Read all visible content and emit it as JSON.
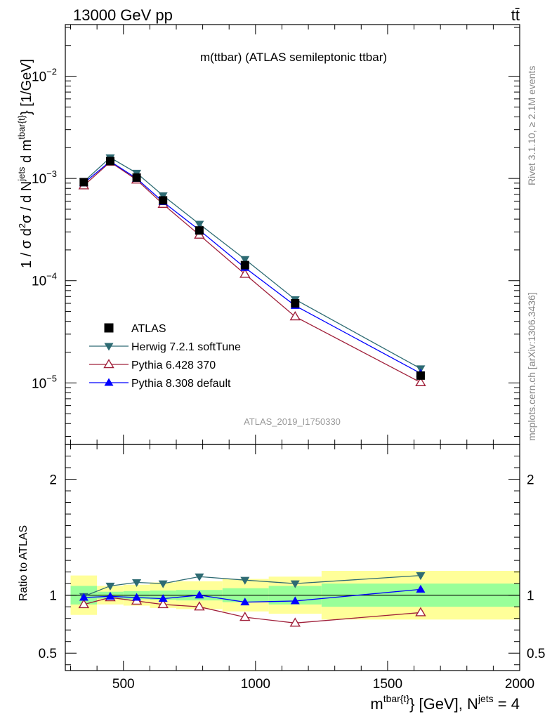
{
  "header": {
    "energy_label": "13000 GeV pp",
    "process_label": "tt̄"
  },
  "side_labels": {
    "rivet": "Rivet 3.1.10, ≥ 2.1M events",
    "mcplots": "mcplots.cern.ch [arXiv:1306.3436]"
  },
  "chart_data": [
    {
      "type": "scatter",
      "panel": "main",
      "title": "m(ttbar) (ATLAS semileptonic ttbar)",
      "watermark": "ATLAS_2019_I1750330",
      "ylabel": "1 / σ d²σ / d N^jets d m^tbar{t} [1/GeV]",
      "yscale": "log",
      "xlim": [
        280,
        2000
      ],
      "ylim": [
        2.5e-06,
        0.032
      ],
      "y_ticks": [
        {
          "value": 1e-05,
          "base": "10",
          "exp": "−5"
        },
        {
          "value": 0.0001,
          "base": "10",
          "exp": "−4"
        },
        {
          "value": 0.001,
          "base": "10",
          "exp": "−3"
        },
        {
          "value": 0.01,
          "base": "10",
          "exp": "−2"
        }
      ],
      "x": [
        350,
        450,
        550,
        650,
        787.5,
        960,
        1150,
        1625
      ],
      "x_bins": [
        [
          300,
          400
        ],
        [
          400,
          500
        ],
        [
          500,
          600
        ],
        [
          600,
          700
        ],
        [
          700,
          875
        ],
        [
          875,
          1050
        ],
        [
          1050,
          1250
        ],
        [
          1250,
          2000
        ]
      ],
      "series": [
        {
          "name": "ATLAS",
          "color": "#000000",
          "marker": "square",
          "values": [
            0.00092,
            0.00148,
            0.00102,
            0.00061,
            0.00031,
            0.000142,
            6e-05,
            1.18e-05
          ]
        },
        {
          "name": "Herwig 7.2.1 softTune",
          "color": "#2e6b73",
          "marker": "triangle-down",
          "values": [
            0.00093,
            0.0016,
            0.00113,
            0.00068,
            0.000358,
            0.000162,
            6.55e-05,
            1.38e-05
          ]
        },
        {
          "name": "Pythia 6.428 370",
          "color": "#a0203a",
          "marker": "triangle-up-open",
          "values": [
            0.00085,
            0.00145,
            0.00097,
            0.00056,
            0.00028,
            0.000116,
            4.45e-05,
            1.01e-05
          ]
        },
        {
          "name": "Pythia 8.308 default",
          "color": "#0000ff",
          "marker": "triangle-up",
          "values": [
            0.0009,
            0.00147,
            0.001,
            0.00059,
            0.000312,
            0.000134,
            5.7e-05,
            1.24e-05
          ]
        }
      ]
    },
    {
      "type": "scatter",
      "panel": "ratio",
      "ylabel": "Ratio to ATLAS",
      "xlabel_main": "m",
      "xlabel_sup": "tbar{t}",
      "xlabel_tail": "} [GeV], N",
      "xlabel_sup2": "jets",
      "xlabel_end": " = 4",
      "xlim": [
        280,
        2000
      ],
      "ylim": [
        0.35,
        2.3
      ],
      "y_ticks": [
        "0.5",
        "1",
        "2"
      ],
      "x_ticks": [
        "500",
        "1000",
        "1500",
        "2000"
      ],
      "reference": 1,
      "x": [
        350,
        450,
        550,
        650,
        787.5,
        960,
        1150,
        1625
      ],
      "x_bins": [
        [
          300,
          400
        ],
        [
          400,
          500
        ],
        [
          500,
          600
        ],
        [
          600,
          700
        ],
        [
          700,
          875
        ],
        [
          875,
          1050
        ],
        [
          1050,
          1250
        ],
        [
          1250,
          2000
        ]
      ],
      "stat_band": [
        [
          0.92,
          1.08
        ],
        [
          0.97,
          1.03
        ],
        [
          0.965,
          1.035
        ],
        [
          0.96,
          1.04
        ],
        [
          0.955,
          1.045
        ],
        [
          0.94,
          1.06
        ],
        [
          0.92,
          1.08
        ],
        [
          0.9,
          1.1
        ]
      ],
      "total_band": [
        [
          0.83,
          1.17
        ],
        [
          0.92,
          1.08
        ],
        [
          0.91,
          1.09
        ],
        [
          0.89,
          1.11
        ],
        [
          0.88,
          1.12
        ],
        [
          0.86,
          1.14
        ],
        [
          0.84,
          1.16
        ],
        [
          0.79,
          1.21
        ]
      ],
      "series": [
        {
          "name": "Herwig 7.2.1 softTune",
          "color": "#2e6b73",
          "marker": "triangle-down",
          "values": [
            0.99,
            1.08,
            1.11,
            1.1,
            1.16,
            1.13,
            1.1,
            1.17
          ]
        },
        {
          "name": "Pythia 6.428 370",
          "color": "#a0203a",
          "marker": "triangle-up-open",
          "values": [
            0.92,
            0.98,
            0.95,
            0.92,
            0.9,
            0.81,
            0.76,
            0.85
          ]
        },
        {
          "name": "Pythia 8.308 default",
          "color": "#0000ff",
          "marker": "triangle-up",
          "values": [
            0.98,
            0.99,
            0.98,
            0.97,
            1.0,
            0.94,
            0.95,
            1.05
          ]
        }
      ]
    }
  ],
  "colors": {
    "stat_band": "#99ff99",
    "total_band": "#ffff99"
  }
}
